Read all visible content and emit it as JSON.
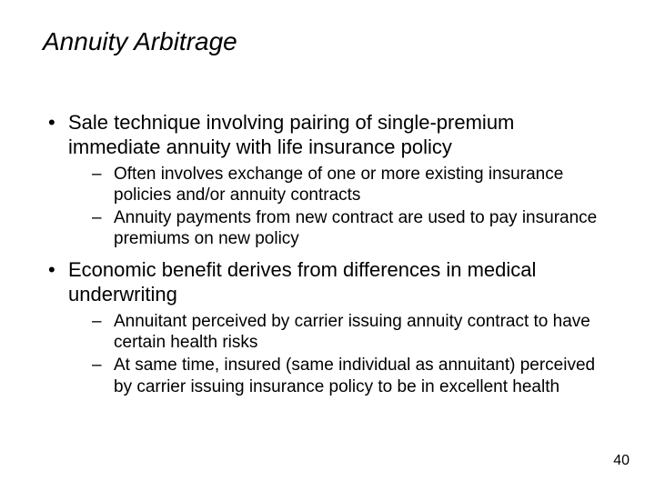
{
  "background_color": "#ffffff",
  "text_color": "#000000",
  "font_family": "Arial",
  "title": {
    "text": "Annuity Arbitrage",
    "fontsize": 28,
    "italic": true
  },
  "bullets": [
    {
      "text": "Sale technique involving pairing of single-premium immediate annuity with life insurance policy",
      "fontsize": 22,
      "sub": [
        {
          "text": "Often involves exchange of one or more existing insurance policies and/or annuity contracts",
          "fontsize": 19
        },
        {
          "text": "Annuity payments from new contract are used to pay insurance premiums on new policy",
          "fontsize": 19
        }
      ]
    },
    {
      "text": "Economic benefit derives from differences in medical underwriting",
      "fontsize": 22,
      "sub": [
        {
          "text": "Annuitant perceived by carrier issuing annuity contract to have certain health risks",
          "fontsize": 19
        },
        {
          "text": "At same time, insured (same individual as annuitant) perceived by carrier issuing insurance policy to be in excellent health",
          "fontsize": 19
        }
      ]
    }
  ],
  "page_number": "40",
  "page_number_fontsize": 16
}
